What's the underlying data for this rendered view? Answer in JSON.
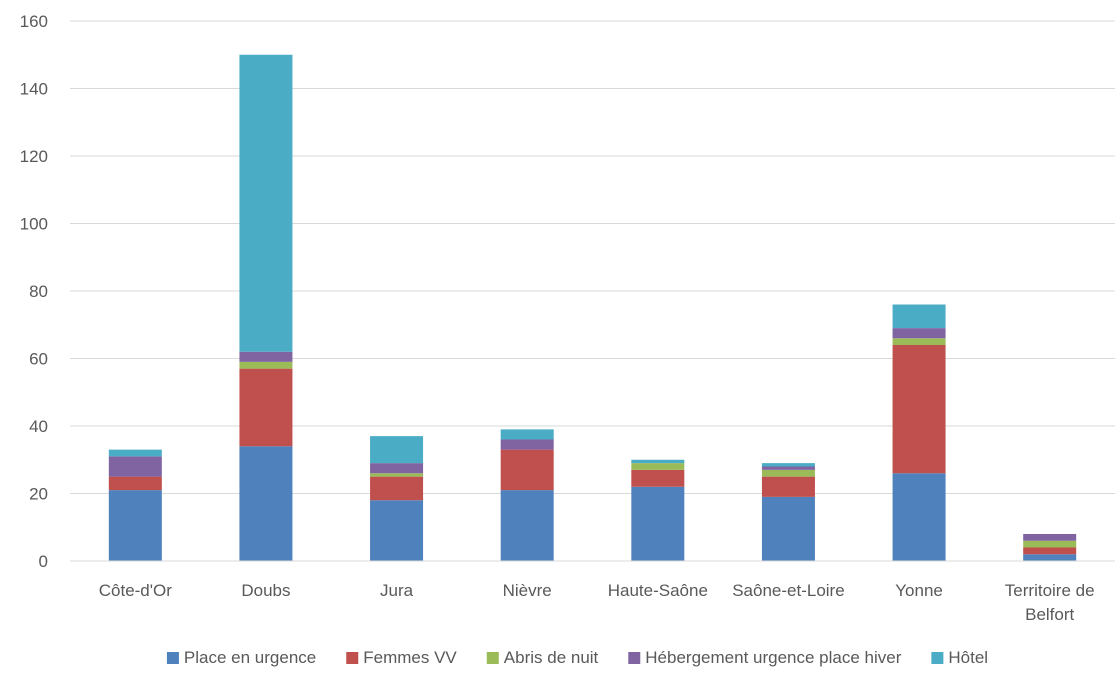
{
  "chart_data": {
    "type": "bar",
    "stacked": true,
    "categories": [
      [
        "Côte-d'Or"
      ],
      [
        "Doubs"
      ],
      [
        "Jura"
      ],
      [
        "Nièvre"
      ],
      [
        "Haute-Saône"
      ],
      [
        "Saône-et-Loire"
      ],
      [
        "Yonne"
      ],
      [
        "Territoire de",
        "Belfort"
      ]
    ],
    "series": [
      {
        "name": "Place en urgence",
        "color": "#4F81BD",
        "values": [
          21,
          34,
          18,
          21,
          22,
          19,
          26,
          2
        ]
      },
      {
        "name": "Femmes VV",
        "color": "#C0504D",
        "values": [
          4,
          23,
          7,
          12,
          5,
          6,
          38,
          2
        ]
      },
      {
        "name": "Abris de nuit",
        "color": "#9BBB59",
        "values": [
          0,
          2,
          1,
          0,
          2,
          2,
          2,
          2
        ]
      },
      {
        "name": "Hébergement urgence place hiver",
        "color": "#8064A2",
        "values": [
          6,
          3,
          3,
          3,
          0,
          1,
          3,
          2
        ]
      },
      {
        "name": "Hôtel",
        "color": "#4BACC6",
        "values": [
          2,
          88,
          8,
          3,
          1,
          1,
          7,
          0
        ]
      }
    ],
    "ylim": [
      0,
      160
    ],
    "yticks": [
      0,
      20,
      40,
      60,
      80,
      100,
      120,
      140,
      160
    ],
    "grid": true,
    "legend_position": "bottom",
    "title": "",
    "xlabel": "",
    "ylabel": ""
  }
}
